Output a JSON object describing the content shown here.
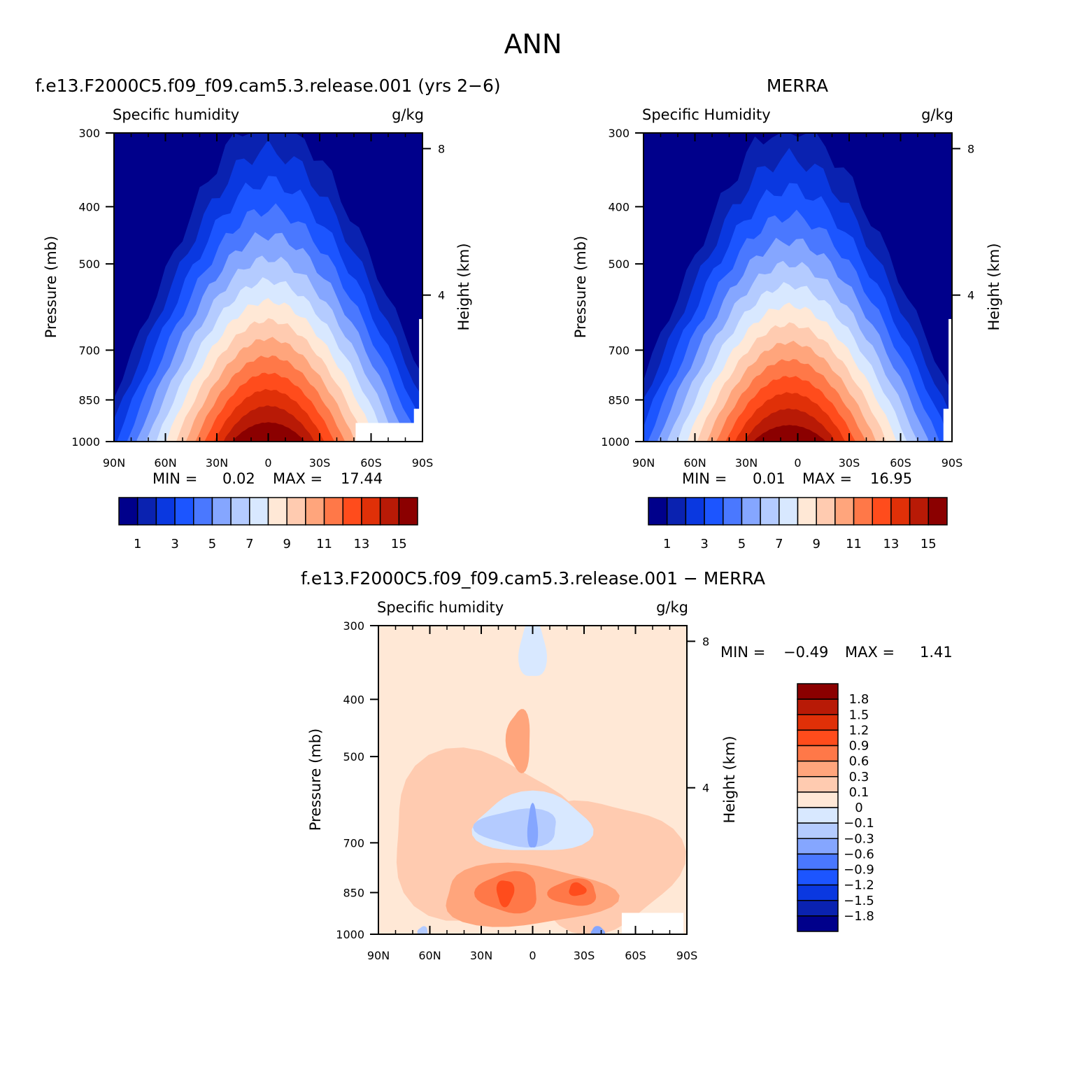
{
  "figure": {
    "title": "ANN",
    "model_left_title": "f.e13.F2000C5.f09_f09.cam5.3.release.001 (yrs 2−6)",
    "obs_right_title": "MERRA",
    "diff_title": "f.e13.F2000C5.f09_f09.cam5.3.release.001  −  MERRA"
  },
  "chart_data": [
    {
      "id": "model",
      "type": "heatmap",
      "subtitle_left": "Specific humidity",
      "subtitle_right": "g/kg",
      "ylabel": "Pressure (mb)",
      "ylabel_right": "Height (km)",
      "x_ticks": [
        "90N",
        "60N",
        "30N",
        "0",
        "30S",
        "60S",
        "90S"
      ],
      "y_ticks": [
        "300",
        "400",
        "500",
        "700",
        "850",
        "1000"
      ],
      "y_values": [
        300,
        400,
        500,
        700,
        850,
        1000
      ],
      "y_right_ticks": [
        "8",
        "4"
      ],
      "y_right_values_km": [
        8,
        4
      ],
      "xlim": [
        90,
        -90
      ],
      "ylim": [
        1000,
        300
      ],
      "y_scale": "log",
      "stats": {
        "min_label": "MIN =",
        "min": "0.02",
        "max_label": "MAX =",
        "max": "17.44"
      },
      "colorbar": {
        "orientation": "horizontal",
        "labels": [
          "1",
          "3",
          "5",
          "7",
          "9",
          "11",
          "13",
          "15"
        ],
        "levels": [
          1,
          2,
          3,
          4,
          5,
          6,
          7,
          8,
          9,
          10,
          11,
          12,
          13,
          14,
          15
        ]
      },
      "peak": {
        "lat": 0,
        "p": 1000,
        "value": 17.44
      }
    },
    {
      "id": "obs",
      "type": "heatmap",
      "subtitle_left": "Specific Humidity",
      "subtitle_right": "g/kg",
      "ylabel": "Pressure (mb)",
      "ylabel_right": "Height (km)",
      "x_ticks": [
        "90N",
        "60N",
        "30N",
        "0",
        "30S",
        "60S",
        "90S"
      ],
      "y_ticks": [
        "300",
        "400",
        "500",
        "700",
        "850",
        "1000"
      ],
      "y_values": [
        300,
        400,
        500,
        700,
        850,
        1000
      ],
      "y_right_ticks": [
        "8",
        "4"
      ],
      "y_right_values_km": [
        8,
        4
      ],
      "xlim": [
        90,
        -90
      ],
      "ylim": [
        1000,
        300
      ],
      "y_scale": "log",
      "stats": {
        "min_label": "MIN =",
        "min": "0.01",
        "max_label": "MAX =",
        "max": "16.95"
      },
      "colorbar": {
        "orientation": "horizontal",
        "labels": [
          "1",
          "3",
          "5",
          "7",
          "9",
          "11",
          "13",
          "15"
        ],
        "levels": [
          1,
          2,
          3,
          4,
          5,
          6,
          7,
          8,
          9,
          10,
          11,
          12,
          13,
          14,
          15
        ]
      },
      "peak": {
        "lat": 5,
        "p": 1000,
        "value": 16.95
      }
    },
    {
      "id": "diff",
      "type": "heatmap",
      "subtitle_left": "Specific humidity",
      "subtitle_right": "g/kg",
      "ylabel": "Pressure (mb)",
      "ylabel_right": "Height (km)",
      "x_ticks": [
        "90N",
        "60N",
        "30N",
        "0",
        "30S",
        "60S",
        "90S"
      ],
      "y_ticks": [
        "300",
        "400",
        "500",
        "700",
        "850",
        "1000"
      ],
      "y_values": [
        300,
        400,
        500,
        700,
        850,
        1000
      ],
      "y_right_ticks": [
        "8",
        "4"
      ],
      "y_right_values_km": [
        8,
        4
      ],
      "xlim": [
        90,
        -90
      ],
      "ylim": [
        1000,
        300
      ],
      "y_scale": "log",
      "stats": {
        "min_label": "MIN =",
        "min": "−0.49",
        "max_label": "MAX =",
        "max": "1.41"
      },
      "colorbar": {
        "orientation": "vertical",
        "labels": [
          "1.8",
          "1.5",
          "1.2",
          "0.9",
          "0.6",
          "0.3",
          "0.1",
          "0",
          "−0.1",
          "−0.3",
          "−0.6",
          "−0.9",
          "−1.2",
          "−1.5",
          "−1.8"
        ],
        "levels": [
          1.8,
          1.5,
          1.2,
          0.9,
          0.6,
          0.3,
          0.1,
          0,
          -0.1,
          -0.3,
          -0.6,
          -0.9,
          -1.2,
          -1.5,
          -1.8
        ]
      }
    }
  ],
  "colors": {
    "scale": [
      "#00008b",
      "#0a22b0",
      "#0a38e0",
      "#1c55ff",
      "#4a78ff",
      "#85a6ff",
      "#b4cbff",
      "#d8e8ff",
      "#ffe8d6",
      "#ffcbb0",
      "#ffa57c",
      "#ff7848",
      "#ff4c1c",
      "#e03008",
      "#b81a06",
      "#8b0000"
    ],
    "masked": "#ffffff"
  }
}
